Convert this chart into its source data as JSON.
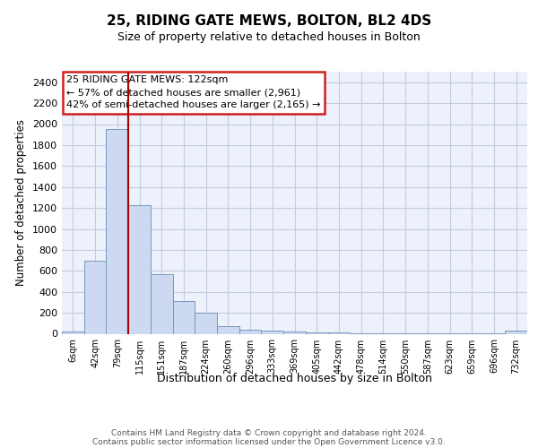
{
  "title1": "25, RIDING GATE MEWS, BOLTON, BL2 4DS",
  "title2": "Size of property relative to detached houses in Bolton",
  "xlabel": "Distribution of detached houses by size in Bolton",
  "ylabel": "Number of detached properties",
  "bin_labels": [
    "6sqm",
    "42sqm",
    "79sqm",
    "115sqm",
    "151sqm",
    "187sqm",
    "224sqm",
    "260sqm",
    "296sqm",
    "333sqm",
    "369sqm",
    "405sqm",
    "442sqm",
    "478sqm",
    "514sqm",
    "550sqm",
    "587sqm",
    "623sqm",
    "659sqm",
    "696sqm",
    "732sqm"
  ],
  "bar_heights": [
    25,
    700,
    1950,
    1230,
    570,
    310,
    200,
    70,
    40,
    30,
    20,
    15,
    10,
    8,
    5,
    4,
    3,
    2,
    2,
    1,
    30
  ],
  "bar_color": "#ccd9f0",
  "bar_edge_color": "#7799bb",
  "vline_color": "#aa0000",
  "vline_x": 2.5,
  "annotation_text": "25 RIDING GATE MEWS: 122sqm\n← 57% of detached houses are smaller (2,961)\n42% of semi-detached houses are larger (2,165) →",
  "annotation_box_edge_color": "#cc2222",
  "ylim": [
    0,
    2500
  ],
  "yticks": [
    0,
    200,
    400,
    600,
    800,
    1000,
    1200,
    1400,
    1600,
    1800,
    2000,
    2200,
    2400
  ],
  "bg_color": "#edf1fb",
  "grid_color": "#c5cce0",
  "footer_line1": "Contains HM Land Registry data © Crown copyright and database right 2024.",
  "footer_line2": "Contains public sector information licensed under the Open Government Licence v3.0."
}
